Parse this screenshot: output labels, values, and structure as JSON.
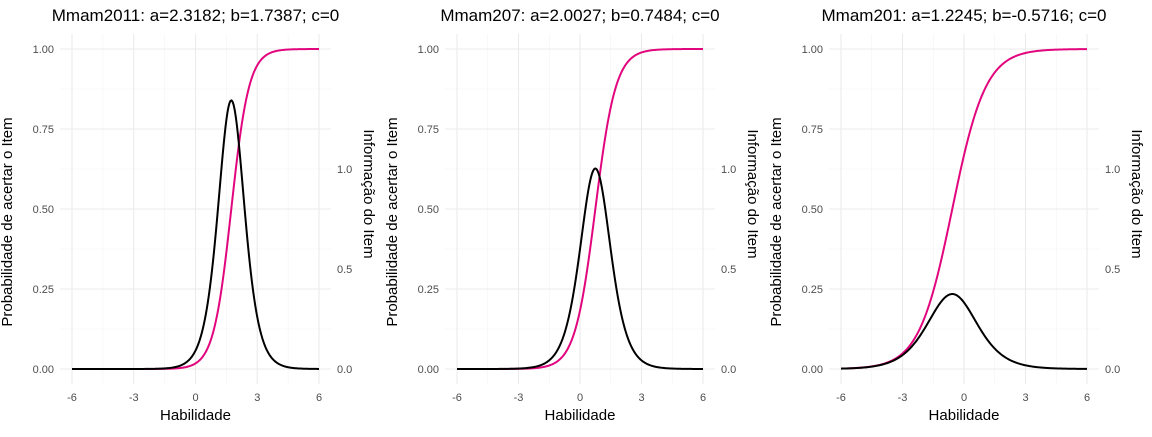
{
  "chart_data": [
    {
      "type": "line",
      "title": "Mmam2011: a=2.3182; b=1.7387; c=0",
      "xlabel": "Habilidade",
      "ylabel": "Probabilidade de acertar o Item",
      "y2label": "Informação do Item",
      "xlim": [
        -6,
        6
      ],
      "ylim": [
        0,
        1
      ],
      "y2lim": [
        0,
        1.6
      ],
      "x_ticks": [
        "-6",
        "-3",
        "0",
        "3",
        "6"
      ],
      "y_ticks": [
        "0.00",
        "0.25",
        "0.50",
        "0.75",
        "1.00"
      ],
      "y2_ticks": [
        "0.0",
        "0.5",
        "1.0"
      ],
      "params": {
        "a": 2.3182,
        "b": 1.7387,
        "c": 0
      },
      "series": [
        {
          "role": "probability",
          "axis": "left",
          "color": "#e2067e",
          "x": [
            -6,
            -4,
            -3,
            -2,
            -1,
            0,
            1,
            1.5,
            2,
            2.5,
            3,
            4,
            5,
            6
          ],
          "values": [
            0.0,
            0.0,
            0.0,
            0.0002,
            0.0017,
            0.0174,
            0.153,
            0.365,
            0.647,
            0.854,
            0.949,
            0.995,
            0.9995,
            1.0
          ]
        },
        {
          "role": "information",
          "axis": "right",
          "color": "#000000",
          "x": [
            -6,
            -3,
            -2,
            -1,
            0,
            0.5,
            1,
            1.5,
            1.74,
            2,
            2.5,
            3,
            4,
            5,
            6
          ],
          "values": [
            0.0,
            0.0,
            0.001,
            0.009,
            0.092,
            0.255,
            0.697,
            1.249,
            1.344,
            1.232,
            0.668,
            0.259,
            0.028,
            0.003,
            0.0
          ]
        }
      ]
    },
    {
      "type": "line",
      "title": "Mmam207: a=2.0027; b=0.7484; c=0",
      "xlabel": "Habilidade",
      "ylabel": "Probabilidade de acertar o Item",
      "y2label": "Informação do Item",
      "xlim": [
        -6,
        6
      ],
      "ylim": [
        0,
        1
      ],
      "y2lim": [
        0,
        1.6
      ],
      "x_ticks": [
        "-6",
        "-3",
        "0",
        "3",
        "6"
      ],
      "y_ticks": [
        "0.00",
        "0.25",
        "0.50",
        "0.75",
        "1.00"
      ],
      "y2_ticks": [
        "0.0",
        "0.5",
        "1.0"
      ],
      "params": {
        "a": 2.0027,
        "b": 0.7484,
        "c": 0
      },
      "series": [
        {
          "role": "probability",
          "axis": "left",
          "color": "#e2067e",
          "x": [
            -6,
            -4,
            -3,
            -2,
            -1,
            0,
            0.5,
            1,
            1.5,
            2,
            3,
            4,
            5,
            6
          ],
          "values": [
            0.0,
            0.0001,
            0.0005,
            0.0041,
            0.029,
            0.182,
            0.378,
            0.624,
            0.821,
            0.928,
            0.99,
            0.9985,
            0.9998,
            1.0
          ]
        },
        {
          "role": "information",
          "axis": "right",
          "color": "#000000",
          "x": [
            -6,
            -4,
            -3,
            -2,
            -1,
            -0.5,
            0,
            0.5,
            0.75,
            1,
            1.5,
            2,
            3,
            4,
            6
          ],
          "values": [
            0.0,
            0.0003,
            0.002,
            0.016,
            0.113,
            0.275,
            0.596,
            0.941,
            1.003,
            0.94,
            0.59,
            0.267,
            0.039,
            0.006,
            0.0
          ]
        }
      ]
    },
    {
      "type": "line",
      "title": "Mmam201: a=1.2245; b=-0.5716; c=0",
      "xlabel": "Habilidade",
      "ylabel": "Probabilidade de acertar o Item",
      "y2label": "Informação do Item",
      "xlim": [
        -6,
        6
      ],
      "ylim": [
        0,
        1
      ],
      "y2lim": [
        0,
        1.6
      ],
      "x_ticks": [
        "-6",
        "-3",
        "0",
        "3",
        "6"
      ],
      "y_ticks": [
        "0.00",
        "0.25",
        "0.50",
        "0.75",
        "1.00"
      ],
      "y2_ticks": [
        "0.0",
        "0.5",
        "1.0"
      ],
      "params": {
        "a": 1.2245,
        "b": -0.5716,
        "c": 0
      },
      "series": [
        {
          "role": "probability",
          "axis": "left",
          "color": "#e2067e",
          "x": [
            -6,
            -5,
            -4,
            -3,
            -2,
            -1,
            -0.57,
            0,
            1,
            2,
            3,
            4,
            5,
            6
          ],
          "values": [
            0.0013,
            0.0036,
            0.0123,
            0.048,
            0.147,
            0.372,
            0.5,
            0.667,
            0.871,
            0.958,
            0.988,
            0.997,
            0.999,
            1.0
          ]
        },
        {
          "role": "information",
          "axis": "right",
          "color": "#000000",
          "x": [
            -6,
            -5,
            -4,
            -3,
            -2,
            -1,
            -0.57,
            0,
            1,
            2,
            3,
            4,
            5,
            6
          ],
          "values": [
            0.002,
            0.007,
            0.018,
            0.068,
            0.189,
            0.351,
            0.375,
            0.333,
            0.168,
            0.06,
            0.018,
            0.006,
            0.002,
            0.0006
          ]
        }
      ]
    }
  ]
}
